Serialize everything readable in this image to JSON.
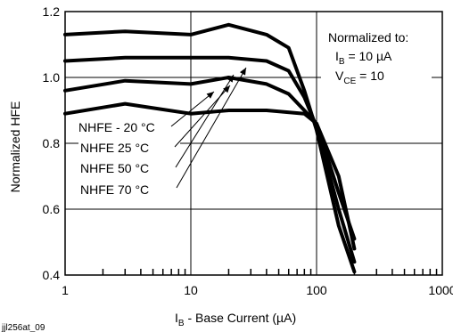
{
  "chart_data": {
    "type": "line",
    "x_scale": "log",
    "xlim": [
      1,
      1000
    ],
    "ylim": [
      0.4,
      1.2
    ],
    "x_ticks": [
      1,
      10,
      100,
      1000
    ],
    "x_tick_labels": [
      "1",
      "10",
      "100",
      "1000"
    ],
    "y_ticks": [
      0.4,
      0.6,
      0.8,
      1.0,
      1.2
    ],
    "y_tick_labels": [
      "0.4",
      "0.6",
      "0.8",
      "1.0",
      "1.2"
    ],
    "ylabel": "Normalized HFE",
    "xlabel": {
      "symbol": "I",
      "sub": "B",
      "rest": " - Base Current (µA)"
    },
    "grid": true,
    "annotation": {
      "line1": "Normalized to:",
      "line2_symbol": "I",
      "line2_sub": "B",
      "line2_rest": " = 10 µA",
      "line3_symbol": "V",
      "line3_sub": "CE",
      "line3_rest": " = 10"
    },
    "figure_id": "jjl256at_09",
    "series": [
      {
        "name": "NHFE - 20 °C",
        "points": [
          [
            1,
            0.89
          ],
          [
            3,
            0.92
          ],
          [
            10,
            0.89
          ],
          [
            20,
            0.9
          ],
          [
            40,
            0.9
          ],
          [
            80,
            0.89
          ],
          [
            100,
            0.86
          ],
          [
            150,
            0.65
          ],
          [
            200,
            0.51
          ]
        ]
      },
      {
        "name": "NHFE 25 °C",
        "points": [
          [
            1,
            0.96
          ],
          [
            3,
            0.99
          ],
          [
            10,
            0.98
          ],
          [
            20,
            1.0
          ],
          [
            40,
            0.98
          ],
          [
            60,
            0.95
          ],
          [
            80,
            0.9
          ],
          [
            100,
            0.86
          ],
          [
            150,
            0.7
          ],
          [
            200,
            0.48
          ]
        ]
      },
      {
        "name": "NHFE 50 °C",
        "points": [
          [
            1,
            1.05
          ],
          [
            3,
            1.06
          ],
          [
            10,
            1.06
          ],
          [
            20,
            1.06
          ],
          [
            40,
            1.05
          ],
          [
            60,
            1.02
          ],
          [
            80,
            0.94
          ],
          [
            100,
            0.85
          ],
          [
            150,
            0.6
          ],
          [
            200,
            0.44
          ]
        ]
      },
      {
        "name": "NHFE 70 °C",
        "points": [
          [
            1,
            1.13
          ],
          [
            3,
            1.14
          ],
          [
            10,
            1.13
          ],
          [
            20,
            1.16
          ],
          [
            40,
            1.13
          ],
          [
            60,
            1.09
          ],
          [
            80,
            0.96
          ],
          [
            100,
            0.84
          ],
          [
            150,
            0.55
          ],
          [
            200,
            0.41
          ]
        ]
      }
    ]
  }
}
